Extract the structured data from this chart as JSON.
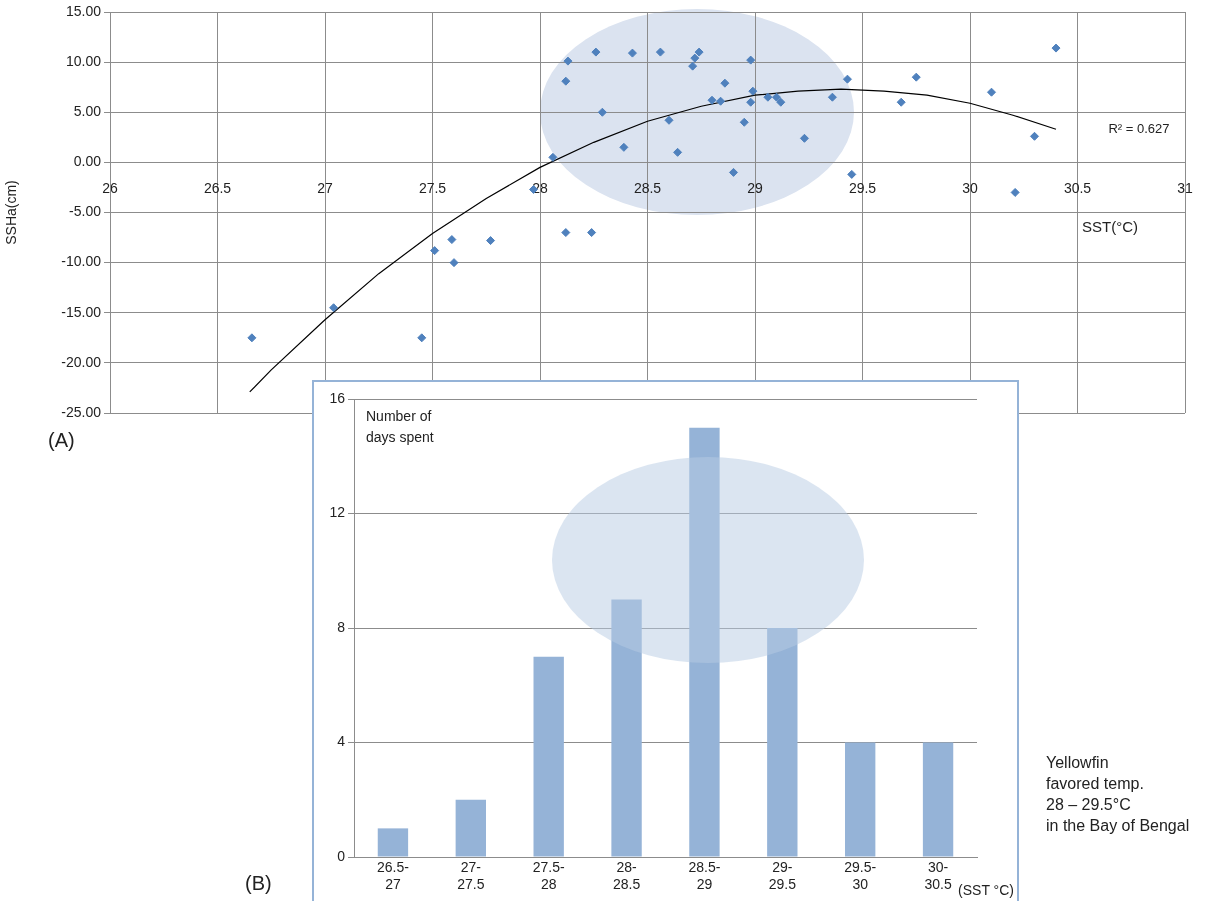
{
  "chart_data": [
    {
      "type": "scatter",
      "xlabel": "SST(°C)",
      "ylabel": "SSHa(cm)",
      "xlim": [
        26,
        31
      ],
      "ylim": [
        -25,
        15
      ],
      "xticks": [
        26,
        26.5,
        27,
        27.5,
        28,
        28.5,
        29,
        29.5,
        30,
        30.5,
        31
      ],
      "yticks": [
        {
          "value": -25,
          "label": "-25.00"
        },
        {
          "value": -20,
          "label": "-20.00"
        },
        {
          "value": -15,
          "label": "-15.00"
        },
        {
          "value": -10,
          "label": "-10.00"
        },
        {
          "value": -5,
          "label": "-5.00"
        },
        {
          "value": 0,
          "label": "0.00"
        },
        {
          "value": 5,
          "label": "5.00"
        },
        {
          "value": 10,
          "label": "10.00"
        },
        {
          "value": 15,
          "label": "15.00"
        }
      ],
      "grid": true,
      "annotations": [
        "(A)",
        "R² = 0.627"
      ],
      "series": [
        {
          "type": "scatter",
          "color": "#4f81bd",
          "marker": "diamond",
          "x": [
            26.66,
            27.04,
            27.45,
            27.51,
            27.59,
            27.6,
            27.77,
            27.97,
            28.06,
            28.13,
            28.12,
            28.26,
            28.29,
            28.43,
            28.39,
            28.56,
            28.6,
            28.64,
            28.71,
            28.72,
            28.74,
            28.8,
            28.84,
            28.86,
            28.9,
            28.95,
            28.98,
            28.98,
            28.99,
            29.06,
            29.1,
            29.12,
            29.23,
            29.36,
            29.43,
            29.45,
            29.68,
            29.75,
            30.1,
            30.21,
            30.3,
            30.4,
            28.12,
            28.24
          ],
          "values": [
            -17.5,
            -14.5,
            -17.5,
            -8.8,
            -7.7,
            -10,
            -7.8,
            -2.7,
            0.5,
            10.1,
            8.1,
            11,
            5,
            10.9,
            1.5,
            11,
            4.2,
            1,
            9.6,
            10.4,
            11,
            6.2,
            6.1,
            7.9,
            -1,
            4,
            10.2,
            6,
            7.1,
            6.5,
            6.5,
            6,
            2.4,
            6.5,
            8.3,
            -1.2,
            6,
            8.5,
            7,
            -3,
            2.6,
            11.4,
            -7,
            -7
          ]
        },
        {
          "type": "line",
          "color": "#000000",
          "marker": "none",
          "x": [
            26.65,
            26.75,
            27,
            27.25,
            27.5,
            27.75,
            28,
            28.25,
            28.5,
            28.75,
            29,
            29.2,
            29.4,
            29.6,
            29.8,
            30,
            30.2,
            30.4
          ],
          "values": [
            -22.9,
            -20.7,
            -15.7,
            -11.1,
            -7.1,
            -3.6,
            -0.5,
            2,
            4.1,
            5.6,
            6.7,
            7.1,
            7.3,
            7.1,
            6.7,
            5.9,
            4.7,
            3.3
          ]
        }
      ]
    },
    {
      "type": "bar",
      "categories": [
        "26.5-27",
        "27-27.5",
        "27.5-28",
        "28-28.5",
        "28.5-29",
        "29-29.5",
        "29.5-30",
        "30-30.5"
      ],
      "values": [
        1,
        2,
        7,
        9,
        15,
        8,
        4,
        4
      ],
      "color": "#95b3d7",
      "xlabel": "(SST °C)",
      "ylabel": "Number of days spent",
      "ylim": [
        0,
        16
      ],
      "yticks": [
        0,
        4,
        8,
        12,
        16
      ],
      "grid": "y",
      "annotations": [
        "(B)",
        "Yellowfin\nfavored temp.\n28 – 29.5°C\nin the Bay of Bengal"
      ]
    }
  ]
}
